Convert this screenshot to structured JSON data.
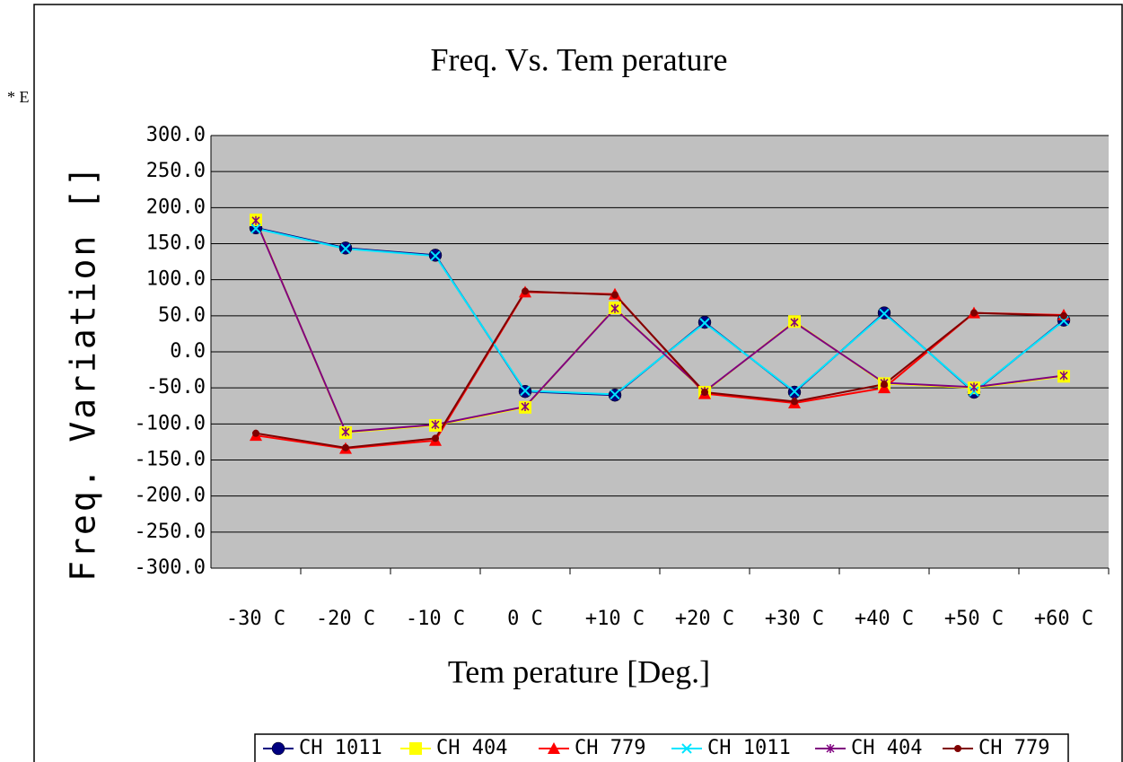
{
  "side_note": "* E",
  "chart_data": {
    "type": "line",
    "title": "Freq. Vs. Tem perature",
    "x_label": "Tem perature [Deg.]",
    "y_label": "Freq. Variation []",
    "categories": [
      "-30 C",
      "-20 C",
      "-10 C",
      "0 C",
      "+10 C",
      "+20 C",
      "+30 C",
      "+40 C",
      "+50 C",
      "+60 C"
    ],
    "ylim": [
      -300,
      300
    ],
    "yticks": [
      {
        "value": -300,
        "label": "-300.0"
      },
      {
        "value": -250,
        "label": "-250.0"
      },
      {
        "value": -200,
        "label": "-200.0"
      },
      {
        "value": -150,
        "label": "-150.0"
      },
      {
        "value": -100,
        "label": "-100.0"
      },
      {
        "value": -50,
        "label": "-50.0"
      },
      {
        "value": 0,
        "label": "0.0"
      },
      {
        "value": 50,
        "label": "50.0"
      },
      {
        "value": 100,
        "label": "100.0"
      },
      {
        "value": 150,
        "label": "150.0"
      },
      {
        "value": 200,
        "label": "200.0"
      },
      {
        "value": 250,
        "label": "250.0"
      },
      {
        "value": 300,
        "label": "300.0"
      }
    ],
    "grid": true,
    "legend": "bottom",
    "series": [
      {
        "name": "CH 1011",
        "color": "#000080",
        "marker": "circle",
        "values": [
          172,
          144,
          134,
          -55,
          -60,
          41,
          -56,
          54,
          -56,
          44
        ]
      },
      {
        "name": "CH 404",
        "color": "#ffff00",
        "marker": "square",
        "values": [
          183,
          -112,
          -102,
          -77,
          61,
          -56,
          42,
          -44,
          -50,
          -34
        ]
      },
      {
        "name": "CH 779",
        "color": "#ff0000",
        "marker": "triangle",
        "values": [
          -116,
          -134,
          -123,
          83,
          80,
          -58,
          -71,
          -50,
          54,
          51
        ]
      },
      {
        "name": "CH 1011",
        "color": "#00e5ff",
        "marker": "x",
        "values": [
          171,
          143,
          133,
          -54,
          -59,
          40,
          -55,
          53,
          -55,
          43
        ]
      },
      {
        "name": "CH 404",
        "color": "#800080",
        "marker": "star",
        "values": [
          182,
          -111,
          -101,
          -76,
          60,
          -55,
          41,
          -43,
          -49,
          -33
        ]
      },
      {
        "name": "CH 779",
        "color": "#800000",
        "marker": "dot",
        "values": [
          -113,
          -133,
          -120,
          84,
          79,
          -56,
          -69,
          -45,
          54,
          50
        ]
      }
    ]
  }
}
